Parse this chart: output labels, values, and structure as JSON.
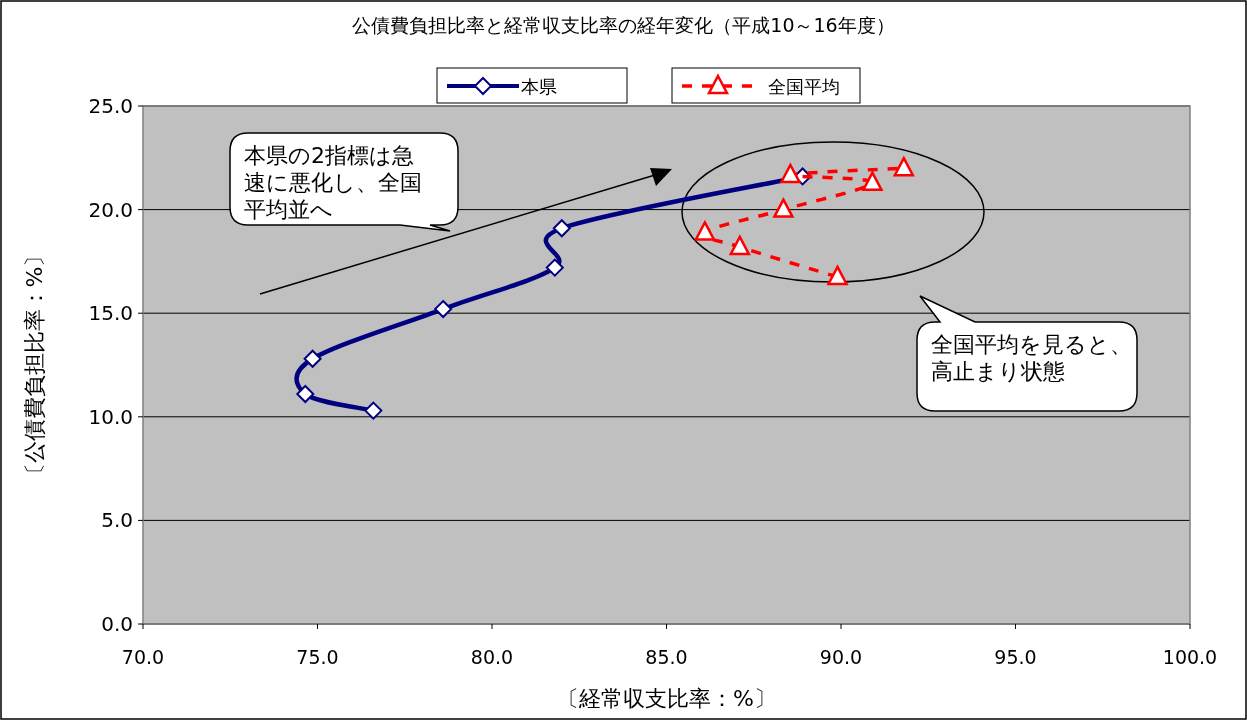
{
  "chart_data": {
    "type": "line",
    "title": "公債費負担比率と経常収支比率の経年変化（平成10～16年度）",
    "xlabel": "〔経常収支比率：%〕",
    "ylabel": "〔公債費負担比率：%〕",
    "series": [
      {
        "name": "本県",
        "color": "#000080",
        "marker": "diamond",
        "line_style": "solid",
        "x": [
          76.6,
          74.65,
          74.86,
          78.6,
          81.8,
          82.0,
          88.9
        ],
        "values": [
          10.3,
          11.1,
          12.8,
          15.2,
          17.2,
          19.1,
          21.6
        ]
      },
      {
        "name": "全国平均",
        "color": "#ff0000",
        "marker": "triangle",
        "line_style": "dashed",
        "x": [
          89.9,
          87.1,
          86.1,
          88.35,
          90.9,
          88.55,
          91.8
        ],
        "values": [
          16.75,
          18.2,
          18.9,
          20.0,
          21.3,
          21.67,
          22.0
        ]
      }
    ],
    "xlim": [
      70,
      100
    ],
    "ylim": [
      0,
      25
    ],
    "xticks": [
      {
        "value": 70,
        "label": "70.0"
      },
      {
        "value": 75,
        "label": "75.0"
      },
      {
        "value": 80,
        "label": "80.0"
      },
      {
        "value": 85,
        "label": "85.0"
      },
      {
        "value": 90,
        "label": "90.0"
      },
      {
        "value": 95,
        "label": "95.0"
      },
      {
        "value": 100,
        "label": "100.0"
      }
    ],
    "yticks": [
      {
        "value": 0,
        "label": "0.0"
      },
      {
        "value": 5,
        "label": "5.0"
      },
      {
        "value": 10,
        "label": "10.0"
      },
      {
        "value": 15,
        "label": "15.0"
      },
      {
        "value": 20,
        "label": "20.0"
      },
      {
        "value": 25,
        "label": "25.0"
      }
    ],
    "grid": "y",
    "legend": "top",
    "annotations": [
      "本県の2指標は急速に悪化し、全国平均並へ",
      "全国平均を見ると、高止まり状態"
    ]
  }
}
